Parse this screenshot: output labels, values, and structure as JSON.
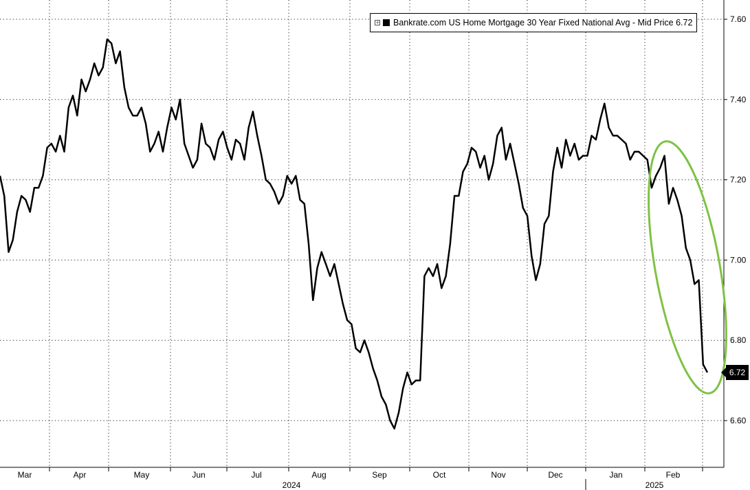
{
  "chart_data": {
    "type": "line",
    "series": [
      {
        "name": "Bankrate.com US Home Mortgage 30 Year Fixed National Avg - Mid Price",
        "last_value": "6.72",
        "color": "#000000",
        "values": [
          7.21,
          7.16,
          7.02,
          7.05,
          7.12,
          7.16,
          7.15,
          7.12,
          7.18,
          7.18,
          7.21,
          7.28,
          7.29,
          7.27,
          7.31,
          7.27,
          7.38,
          7.41,
          7.36,
          7.45,
          7.42,
          7.45,
          7.49,
          7.46,
          7.48,
          7.55,
          7.54,
          7.49,
          7.52,
          7.43,
          7.38,
          7.36,
          7.36,
          7.38,
          7.34,
          7.27,
          7.29,
          7.32,
          7.27,
          7.33,
          7.38,
          7.35,
          7.4,
          7.29,
          7.26,
          7.23,
          7.25,
          7.34,
          7.29,
          7.28,
          7.25,
          7.3,
          7.32,
          7.28,
          7.25,
          7.3,
          7.29,
          7.25,
          7.33,
          7.37,
          7.31,
          7.26,
          7.2,
          7.19,
          7.17,
          7.14,
          7.16,
          7.21,
          7.19,
          7.21,
          7.15,
          7.14,
          7.04,
          6.9,
          6.98,
          7.02,
          6.99,
          6.96,
          6.99,
          6.94,
          6.89,
          6.85,
          6.84,
          6.78,
          6.77,
          6.8,
          6.77,
          6.73,
          6.7,
          6.66,
          6.64,
          6.6,
          6.58,
          6.62,
          6.68,
          6.72,
          6.69,
          6.7,
          6.7,
          6.96,
          6.98,
          6.96,
          6.99,
          6.93,
          6.96,
          7.04,
          7.16,
          7.16,
          7.22,
          7.24,
          7.28,
          7.27,
          7.23,
          7.26,
          7.2,
          7.24,
          7.31,
          7.33,
          7.25,
          7.29,
          7.24,
          7.19,
          7.13,
          7.11,
          7.01,
          6.95,
          6.99,
          7.09,
          7.11,
          7.22,
          7.28,
          7.23,
          7.3,
          7.26,
          7.29,
          7.25,
          7.26,
          7.26,
          7.31,
          7.3,
          7.35,
          7.39,
          7.33,
          7.31,
          7.31,
          7.3,
          7.29,
          7.25,
          7.27,
          7.27,
          7.26,
          7.25,
          7.18,
          7.21,
          7.23,
          7.26,
          7.14,
          7.18,
          7.15,
          7.11,
          7.03,
          7.0,
          6.94,
          6.95,
          6.74,
          6.72
        ]
      }
    ],
    "x_ticks": [
      "Mar",
      "Apr",
      "May",
      "Jun",
      "Jul",
      "Aug",
      "Sep",
      "Oct",
      "Nov",
      "Dec",
      "Jan",
      "Feb"
    ],
    "year_labels": [
      "2024",
      "2025"
    ],
    "y_ticks": [
      "6.60",
      "6.80",
      "7.00",
      "7.20",
      "7.40",
      "7.60"
    ],
    "ylim": [
      6.47,
      7.64
    ],
    "grid": true,
    "legend_position": "top-right",
    "annotation": {
      "type": "ellipse",
      "color": "#7dc242",
      "target": "last 2 weeks of series"
    }
  }
}
